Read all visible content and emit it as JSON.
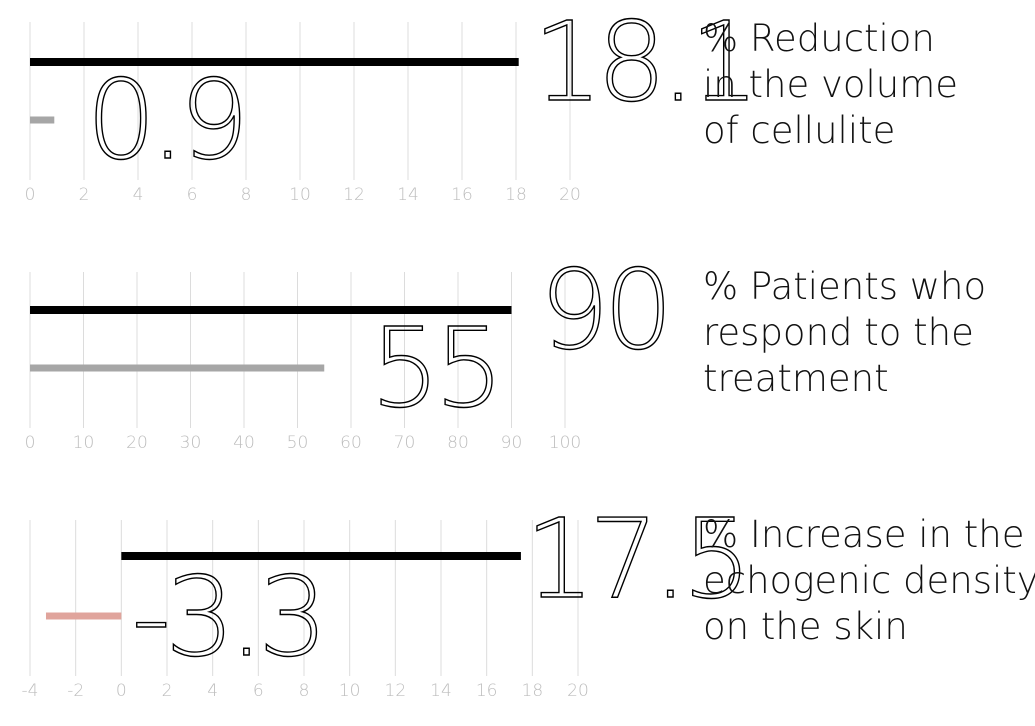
{
  "chart_data": [
    {
      "type": "bar",
      "orientation": "horizontal",
      "description": [
        "% Reduction",
        "in the volume",
        "of cellulite"
      ],
      "xlim": [
        0,
        20
      ],
      "x_ticks": [
        0,
        2,
        4,
        6,
        8,
        10,
        12,
        14,
        16,
        18,
        20
      ],
      "grid": true,
      "series": [
        {
          "value": 18.1,
          "label": "18.1",
          "color": "#000000"
        },
        {
          "value": 0.9,
          "label": "0.9",
          "color": "#a6a6a6"
        }
      ]
    },
    {
      "type": "bar",
      "orientation": "horizontal",
      "description": [
        "% Patients who",
        "respond to the",
        "treatment"
      ],
      "xlim": [
        0,
        100
      ],
      "x_ticks": [
        0,
        10,
        20,
        30,
        40,
        50,
        60,
        70,
        80,
        90,
        100
      ],
      "grid": true,
      "series": [
        {
          "value": 90,
          "label": "90",
          "color": "#000000"
        },
        {
          "value": 55,
          "label": "55",
          "color": "#a6a6a6"
        }
      ]
    },
    {
      "type": "bar",
      "orientation": "horizontal",
      "description": [
        "% Increase in the",
        "echogenic density",
        "on the skin"
      ],
      "xlim": [
        -4,
        20
      ],
      "x_ticks": [
        -4,
        -2,
        0,
        2,
        4,
        6,
        8,
        10,
        12,
        14,
        16,
        18,
        20
      ],
      "grid": true,
      "series": [
        {
          "value": 17.5,
          "label": "17.5",
          "color": "#000000"
        },
        {
          "value": -3.3,
          "label": "-3.3",
          "color": "#e0a49c"
        }
      ]
    }
  ]
}
